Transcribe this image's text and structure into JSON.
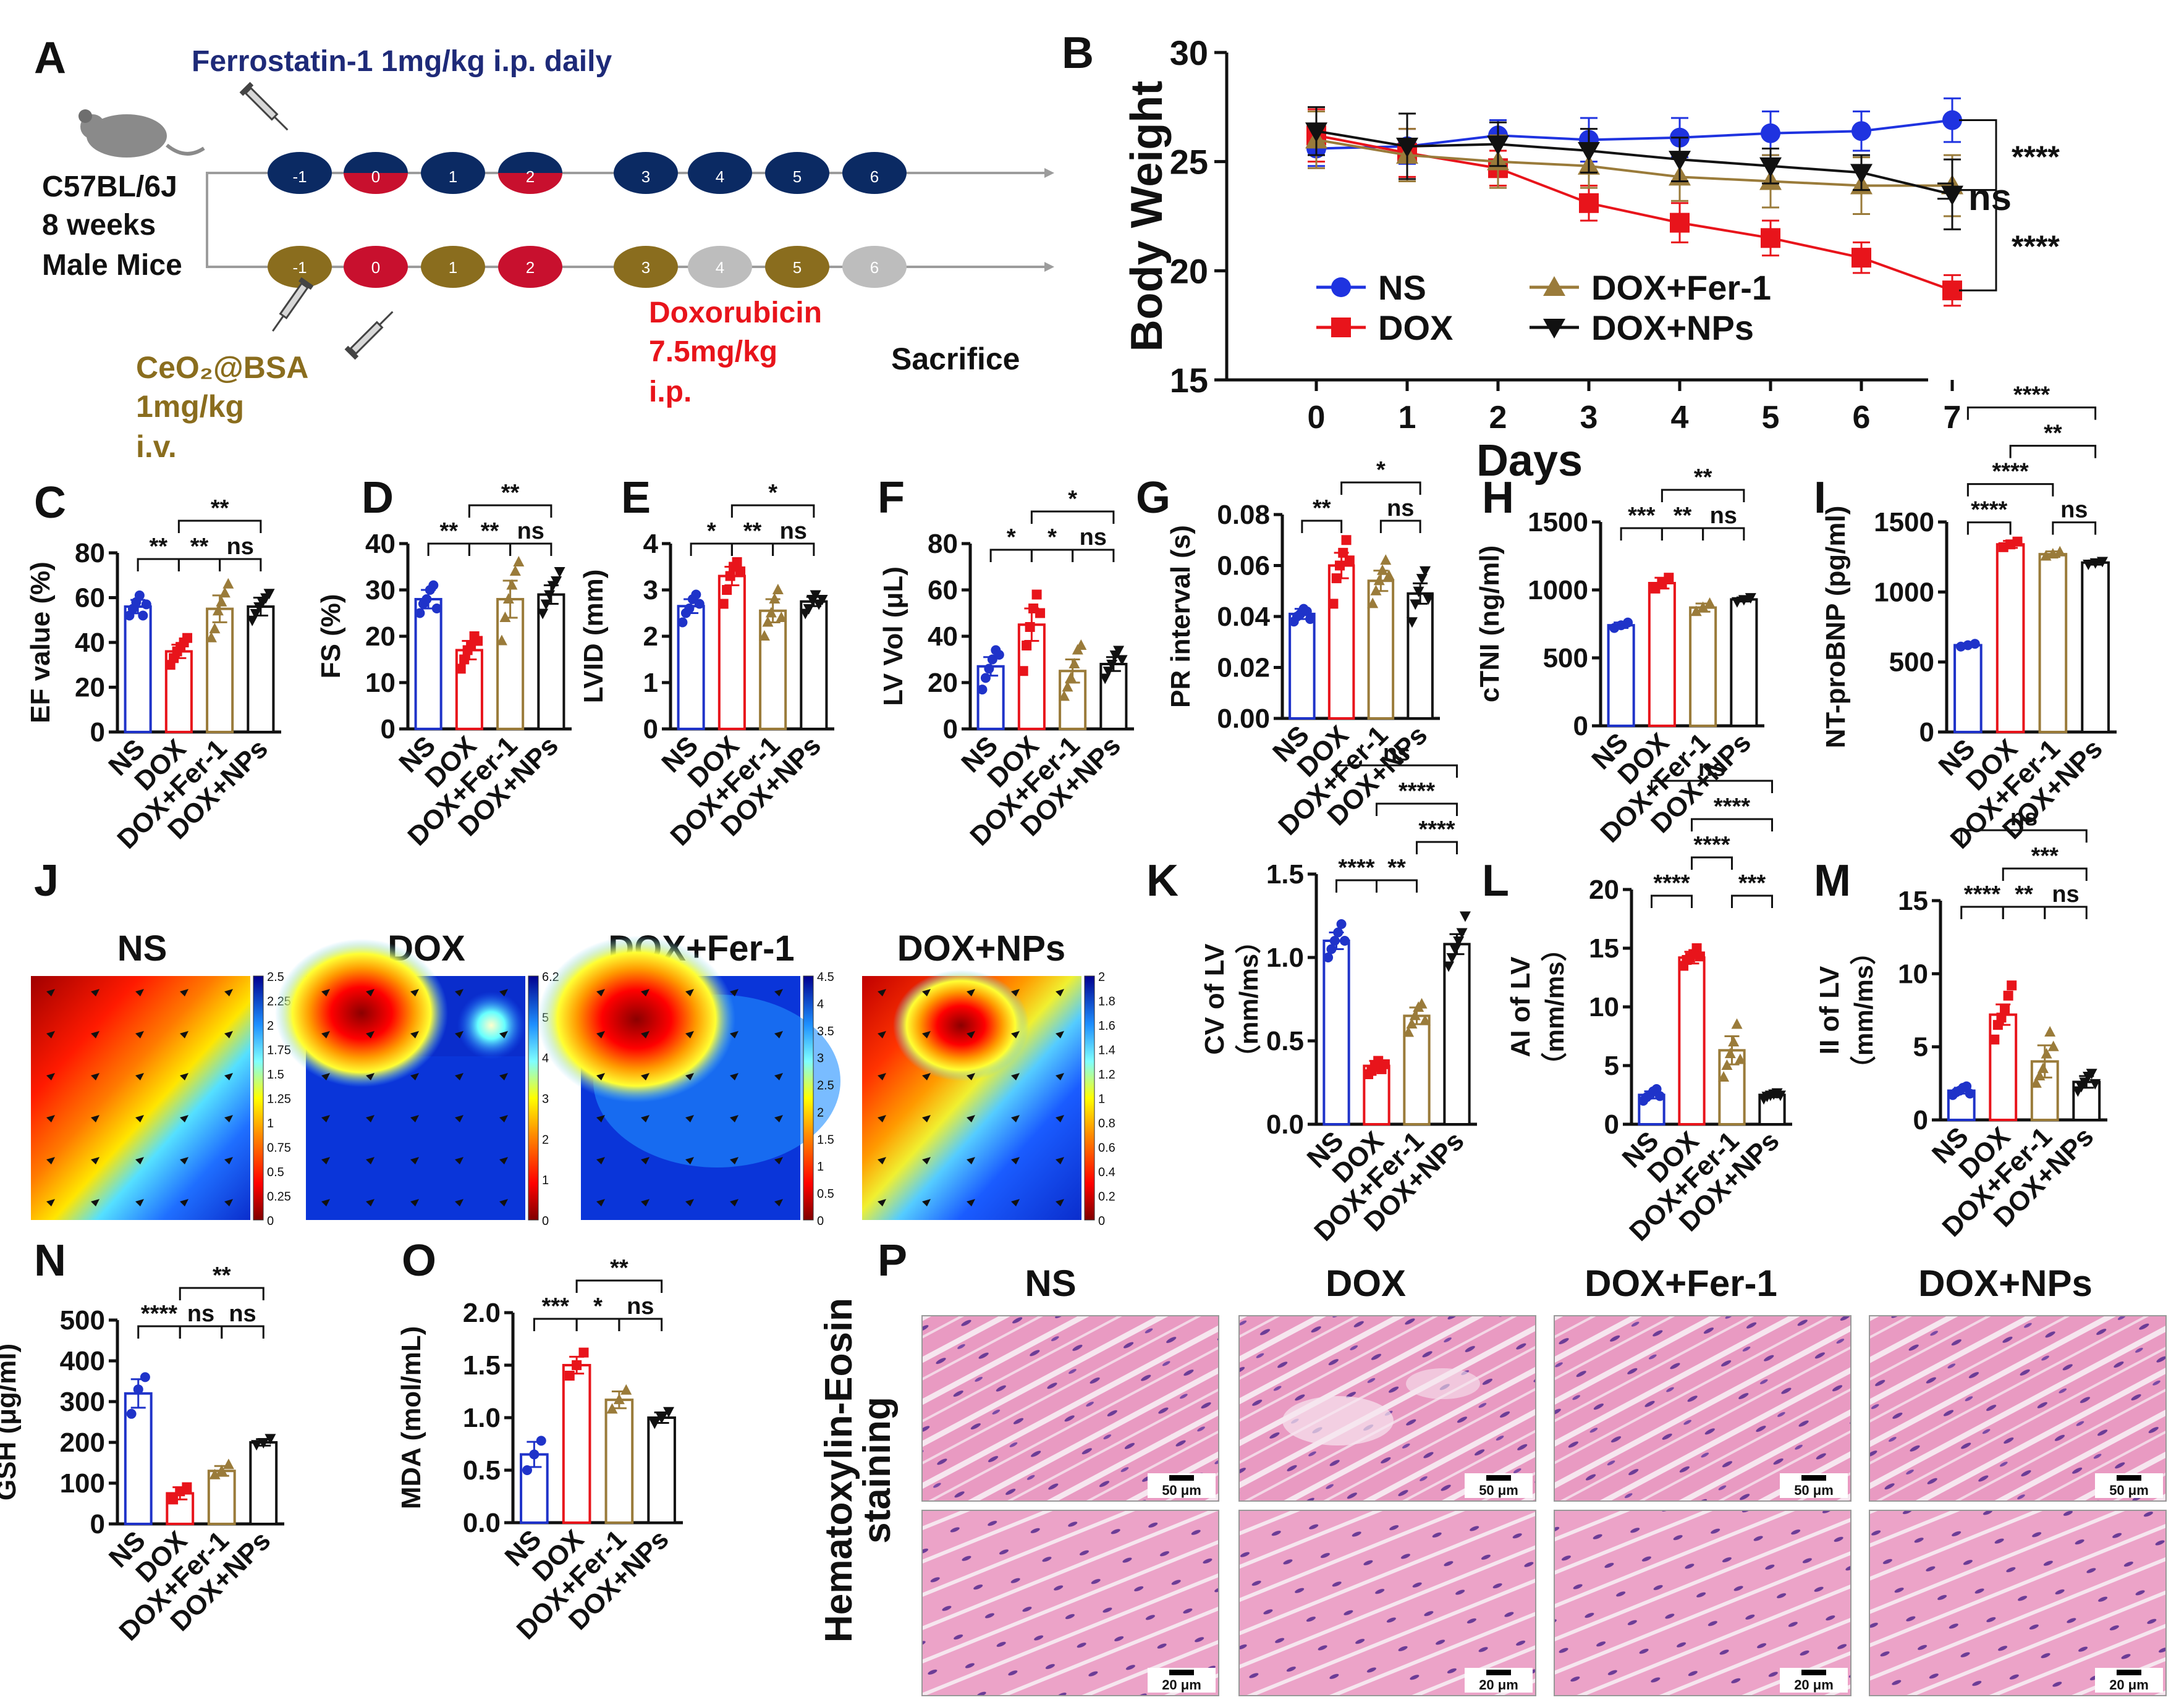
{
  "panel_letters": {
    "A": "A",
    "B": "B",
    "C": "C",
    "D": "D",
    "E": "E",
    "F": "F",
    "G": "G",
    "H": "H",
    "I": "I",
    "J": "J",
    "K": "K",
    "L": "L",
    "M": "M",
    "N": "N",
    "O": "O",
    "P": "P"
  },
  "schematic": {
    "fer_label": "Ferrostatin-1 1mg/kg i.p. daily",
    "mouse_lines": [
      "C57BL/6J",
      "8 weeks",
      "Male Mice"
    ],
    "days": [
      "-1",
      "0",
      "1",
      "2",
      "3",
      "4",
      "5",
      "6"
    ],
    "ceo2_lines": [
      "CeO₂@BSA",
      "1mg/kg",
      "i.v."
    ],
    "dox_lines": [
      "Doxorubicin",
      "7.5mg/kg",
      "i.p."
    ],
    "sacrifice": "Sacrifice",
    "colors": {
      "navy": "#0b2a63",
      "red": "#c8102e",
      "olive": "#8a6d1e",
      "gray": "#bdbdbd"
    }
  },
  "groups": [
    "NS",
    "DOX",
    "DOX+Fer-1",
    "DOX+NPs"
  ],
  "group_colors": [
    "#1f33c9",
    "#e8141b",
    "#9a7b3a",
    "#111111"
  ],
  "chart_data": [
    {
      "panel": "B",
      "type": "line",
      "ylabel": "Body Weight",
      "xlabel": "Days",
      "x": [
        0,
        1,
        2,
        3,
        4,
        5,
        6,
        7
      ],
      "ylim": [
        15,
        30
      ],
      "yticks": [
        15,
        20,
        25,
        30
      ],
      "series": [
        {
          "name": "NS",
          "values": [
            25.6,
            25.7,
            26.2,
            26.0,
            26.1,
            26.3,
            26.4,
            26.9
          ],
          "err": [
            0.8,
            0.8,
            0.7,
            1.0,
            0.9,
            1.0,
            0.9,
            1.0
          ]
        },
        {
          "name": "DOX",
          "values": [
            26.2,
            25.4,
            24.7,
            23.1,
            22.2,
            21.5,
            20.6,
            19.1
          ],
          "err": [
            1.2,
            1.1,
            0.8,
            0.8,
            0.9,
            0.8,
            0.7,
            0.7
          ]
        },
        {
          "name": "DOX+Fer-1",
          "values": [
            26.0,
            25.3,
            25.0,
            24.8,
            24.3,
            24.1,
            23.9,
            23.9
          ],
          "err": [
            1.3,
            1.2,
            1.2,
            1.0,
            1.1,
            1.2,
            1.3,
            1.4
          ]
        },
        {
          "name": "DOX+NPs",
          "values": [
            26.4,
            25.7,
            25.8,
            25.5,
            25.1,
            24.8,
            24.5,
            23.5
          ],
          "err": [
            1.1,
            1.5,
            1.0,
            1.0,
            1.0,
            0.8,
            0.8,
            1.6
          ]
        }
      ],
      "annotations": [
        "****",
        "ns",
        "****"
      ]
    },
    {
      "panel": "C",
      "type": "bar",
      "ylabel": "EF value (%)",
      "ylim": [
        0,
        80
      ],
      "yticks": [
        0,
        20,
        40,
        60,
        80
      ],
      "values": [
        56,
        36,
        55,
        56
      ],
      "err": [
        3,
        3,
        6,
        4
      ],
      "points": [
        [
          52,
          55,
          58,
          61,
          52,
          57
        ],
        [
          30,
          33,
          36,
          38,
          40,
          42
        ],
        [
          42,
          46,
          54,
          58,
          62,
          66
        ],
        [
          50,
          53,
          56,
          58,
          60,
          62
        ]
      ],
      "brackets": [
        {
          "a": 0,
          "b": 1,
          "t": "**",
          "lvl": 0
        },
        {
          "a": 1,
          "b": 2,
          "t": "**",
          "lvl": 0
        },
        {
          "a": 2,
          "b": 3,
          "t": "ns",
          "lvl": 0
        },
        {
          "a": 1,
          "b": 3,
          "t": "**",
          "lvl": 1
        }
      ]
    },
    {
      "panel": "D",
      "type": "bar",
      "ylabel": "FS (%)",
      "ylim": [
        0,
        40
      ],
      "yticks": [
        0,
        10,
        20,
        30,
        40
      ],
      "values": [
        28,
        17,
        28,
        29
      ],
      "err": [
        2,
        2,
        4,
        2
      ],
      "points": [
        [
          25,
          27,
          28,
          30,
          31,
          26
        ],
        [
          13,
          15,
          17,
          18,
          20,
          19
        ],
        [
          19,
          24,
          28,
          31,
          34,
          36
        ],
        [
          25,
          27,
          29,
          31,
          32,
          34
        ]
      ],
      "brackets": [
        {
          "a": 0,
          "b": 1,
          "t": "**",
          "lvl": 0
        },
        {
          "a": 1,
          "b": 2,
          "t": "**",
          "lvl": 0
        },
        {
          "a": 2,
          "b": 3,
          "t": "ns",
          "lvl": 0
        },
        {
          "a": 1,
          "b": 3,
          "t": "**",
          "lvl": 1
        }
      ]
    },
    {
      "panel": "E",
      "type": "bar",
      "ylabel": "LVID (mm)",
      "ylim": [
        0,
        4
      ],
      "yticks": [
        0,
        1,
        2,
        3,
        4
      ],
      "values": [
        2.65,
        3.3,
        2.55,
        2.75
      ],
      "err": [
        0.15,
        0.2,
        0.25,
        0.1
      ],
      "points": [
        [
          2.3,
          2.5,
          2.6,
          2.8,
          2.9,
          2.7
        ],
        [
          2.7,
          3.0,
          3.3,
          3.5,
          3.6,
          3.4
        ],
        [
          2.0,
          2.3,
          2.5,
          2.8,
          3.0,
          2.4
        ],
        [
          2.5,
          2.6,
          2.8,
          2.9,
          2.7,
          2.8
        ]
      ],
      "brackets": [
        {
          "a": 0,
          "b": 1,
          "t": "*",
          "lvl": 0
        },
        {
          "a": 1,
          "b": 2,
          "t": "**",
          "lvl": 0
        },
        {
          "a": 2,
          "b": 3,
          "t": "ns",
          "lvl": 0
        },
        {
          "a": 1,
          "b": 3,
          "t": "*",
          "lvl": 1
        }
      ]
    },
    {
      "panel": "F",
      "type": "bar",
      "ylabel": "LV Vol (μL)",
      "ylim": [
        0,
        80
      ],
      "yticks": [
        0,
        20,
        40,
        60,
        80
      ],
      "values": [
        27,
        45,
        25,
        28
      ],
      "err": [
        4,
        7,
        5,
        3
      ],
      "points": [
        [
          17,
          22,
          26,
          30,
          34,
          32
        ],
        [
          25,
          36,
          44,
          52,
          58,
          50
        ],
        [
          14,
          18,
          22,
          28,
          34,
          36
        ],
        [
          22,
          25,
          28,
          32,
          34,
          30
        ]
      ],
      "brackets": [
        {
          "a": 0,
          "b": 1,
          "t": "*",
          "lvl": 0
        },
        {
          "a": 1,
          "b": 2,
          "t": "*",
          "lvl": 0
        },
        {
          "a": 2,
          "b": 3,
          "t": "ns",
          "lvl": 0
        },
        {
          "a": 1,
          "b": 3,
          "t": "*",
          "lvl": 1
        }
      ]
    },
    {
      "panel": "G",
      "type": "bar",
      "ylabel": "PR interval (s)",
      "ylim": [
        0,
        0.08
      ],
      "yticks": [
        0.0,
        0.02,
        0.04,
        0.06,
        0.08
      ],
      "tickfmt": 2,
      "values": [
        0.041,
        0.06,
        0.054,
        0.049
      ],
      "err": [
        0.002,
        0.005,
        0.004,
        0.004
      ],
      "points": [
        [
          0.038,
          0.04,
          0.041,
          0.043,
          0.042,
          0.039
        ],
        [
          0.045,
          0.055,
          0.06,
          0.065,
          0.07,
          0.062
        ],
        [
          0.045,
          0.05,
          0.054,
          0.058,
          0.062,
          0.056
        ],
        [
          0.038,
          0.045,
          0.05,
          0.055,
          0.058,
          0.047
        ]
      ],
      "brackets": [
        {
          "a": 0,
          "b": 1,
          "t": "**",
          "lvl": 0
        },
        {
          "a": 2,
          "b": 3,
          "t": "ns",
          "lvl": 0
        },
        {
          "a": 1,
          "b": 3,
          "t": "*",
          "lvl": 1
        }
      ]
    },
    {
      "panel": "H",
      "type": "bar",
      "ylabel": "cTNI (ng/ml)",
      "ylim": [
        0,
        1500
      ],
      "yticks": [
        0,
        500,
        1000,
        1500
      ],
      "values": [
        740,
        1050,
        870,
        930
      ],
      "err": [
        20,
        40,
        30,
        15
      ],
      "points": [
        [
          720,
          740,
          760
        ],
        [
          1010,
          1050,
          1090
        ],
        [
          840,
          870,
          900
        ],
        [
          915,
          930,
          945
        ]
      ],
      "brackets": [
        {
          "a": 0,
          "b": 1,
          "t": "***",
          "lvl": 0
        },
        {
          "a": 1,
          "b": 2,
          "t": "**",
          "lvl": 0
        },
        {
          "a": 2,
          "b": 3,
          "t": "ns",
          "lvl": 0
        },
        {
          "a": 1,
          "b": 3,
          "t": "**",
          "lvl": 1
        }
      ]
    },
    {
      "panel": "I",
      "type": "bar",
      "ylabel": "NT-proBNP (pg/ml)",
      "ylim": [
        0,
        1500
      ],
      "yticks": [
        0,
        500,
        1000,
        1500
      ],
      "values": [
        620,
        1340,
        1270,
        1210
      ],
      "err": [
        10,
        25,
        20,
        15
      ],
      "points": [
        [
          610,
          620,
          630
        ],
        [
          1320,
          1340,
          1360
        ],
        [
          1255,
          1270,
          1285
        ],
        [
          1200,
          1210,
          1220
        ]
      ],
      "brackets": [
        {
          "a": 0,
          "b": 1,
          "t": "****",
          "lvl": 0
        },
        {
          "a": 2,
          "b": 3,
          "t": "ns",
          "lvl": 0
        },
        {
          "a": 0,
          "b": 2,
          "t": "****",
          "lvl": 1
        },
        {
          "a": 1,
          "b": 3,
          "t": "**",
          "lvl": 2
        },
        {
          "a": 0,
          "b": 3,
          "t": "****",
          "lvl": 3
        }
      ]
    },
    {
      "panel": "K",
      "type": "bar",
      "ylabel": "CV of LV",
      "ylabel2": "（mm/ms）",
      "ylim": [
        0,
        1.5
      ],
      "yticks": [
        0.0,
        0.5,
        1.0,
        1.5
      ],
      "tickfmt": 1,
      "values": [
        1.1,
        0.35,
        0.65,
        1.08
      ],
      "err": [
        0.05,
        0.03,
        0.05,
        0.06
      ],
      "points": [
        [
          1.0,
          1.05,
          1.1,
          1.15,
          1.2,
          1.1
        ],
        [
          0.3,
          0.32,
          0.35,
          0.38,
          0.33,
          0.36
        ],
        [
          0.55,
          0.6,
          0.65,
          0.7,
          0.72,
          0.62
        ],
        [
          0.95,
          1.0,
          1.05,
          1.1,
          1.15,
          1.25
        ]
      ],
      "brackets": [
        {
          "a": 0,
          "b": 1,
          "t": "****",
          "lvl": 0
        },
        {
          "a": 1,
          "b": 2,
          "t": "**",
          "lvl": 0
        },
        {
          "a": 2,
          "b": 3,
          "t": "****",
          "lvl": 1
        },
        {
          "a": 1,
          "b": 3,
          "t": "****",
          "lvl": 2
        },
        {
          "a": 0,
          "b": 3,
          "t": "ns",
          "lvl": 3
        }
      ]
    },
    {
      "panel": "L",
      "type": "bar",
      "ylabel": "AI of LV",
      "ylabel2": "（mm/ms）",
      "ylim": [
        0,
        20
      ],
      "yticks": [
        0,
        5,
        10,
        15,
        20
      ],
      "values": [
        2.5,
        14.2,
        6.3,
        2.5
      ],
      "err": [
        0.3,
        0.5,
        1.2,
        0.2
      ],
      "points": [
        [
          2,
          2.3,
          2.5,
          2.8,
          3,
          2.4
        ],
        [
          13.5,
          14,
          14.2,
          14.5,
          15,
          14.3
        ],
        [
          4,
          5,
          6,
          7,
          8.5,
          5.5
        ],
        [
          2.2,
          2.4,
          2.5,
          2.6,
          2.7,
          2.5
        ]
      ],
      "brackets": [
        {
          "a": 0,
          "b": 1,
          "t": "****",
          "lvl": 0
        },
        {
          "a": 2,
          "b": 3,
          "t": "***",
          "lvl": 0
        },
        {
          "a": 1,
          "b": 2,
          "t": "****",
          "lvl": 1
        },
        {
          "a": 1,
          "b": 3,
          "t": "****",
          "lvl": 2
        },
        {
          "a": 0,
          "b": 3,
          "t": "ns",
          "lvl": 3
        }
      ]
    },
    {
      "panel": "M",
      "type": "bar",
      "ylabel": "II of LV",
      "ylabel2": "（mm/ms）",
      "ylim": [
        0,
        15
      ],
      "yticks": [
        0,
        5,
        10,
        15
      ],
      "values": [
        2.0,
        7.2,
        4.0,
        2.6
      ],
      "err": [
        0.2,
        0.7,
        1.1,
        0.4
      ],
      "points": [
        [
          1.7,
          1.9,
          2,
          2.2,
          2.3,
          1.8
        ],
        [
          5.5,
          6.5,
          7,
          7.5,
          8.5,
          9.2
        ],
        [
          2.5,
          3,
          3.5,
          4.5,
          6,
          5
        ],
        [
          2,
          2.3,
          2.6,
          3,
          3.2,
          2.5
        ]
      ],
      "brackets": [
        {
          "a": 0,
          "b": 1,
          "t": "****",
          "lvl": 0
        },
        {
          "a": 1,
          "b": 2,
          "t": "**",
          "lvl": 0
        },
        {
          "a": 2,
          "b": 3,
          "t": "ns",
          "lvl": 0
        },
        {
          "a": 1,
          "b": 3,
          "t": "***",
          "lvl": 1
        },
        {
          "a": 0,
          "b": 3,
          "t": "ns",
          "lvl": 2
        }
      ]
    },
    {
      "panel": "N",
      "type": "bar",
      "ylabel": "GSH (μg/ml)",
      "ylim": [
        0,
        500
      ],
      "yticks": [
        0,
        100,
        200,
        300,
        400,
        500
      ],
      "values": [
        320,
        75,
        130,
        200
      ],
      "err": [
        35,
        15,
        12,
        8
      ],
      "points": [
        [
          270,
          330,
          360
        ],
        [
          60,
          80,
          90
        ],
        [
          120,
          130,
          145
        ],
        [
          195,
          200,
          210
        ]
      ],
      "brackets": [
        {
          "a": 0,
          "b": 1,
          "t": "****",
          "lvl": 0
        },
        {
          "a": 1,
          "b": 2,
          "t": "ns",
          "lvl": 0
        },
        {
          "a": 2,
          "b": 3,
          "t": "ns",
          "lvl": 0
        },
        {
          "a": 1,
          "b": 3,
          "t": "**",
          "lvl": 1
        }
      ]
    },
    {
      "panel": "O",
      "type": "bar",
      "ylabel": "MDA (mol/mL)",
      "ylim": [
        0,
        2.0
      ],
      "yticks": [
        0.0,
        0.5,
        1.0,
        1.5,
        2.0
      ],
      "tickfmt": 1,
      "values": [
        0.65,
        1.5,
        1.17,
        1.0
      ],
      "err": [
        0.12,
        0.08,
        0.08,
        0.05
      ],
      "points": [
        [
          0.5,
          0.65,
          0.78
        ],
        [
          1.4,
          1.5,
          1.62
        ],
        [
          1.08,
          1.17,
          1.26
        ],
        [
          0.95,
          1.0,
          1.06
        ]
      ],
      "brackets": [
        {
          "a": 0,
          "b": 1,
          "t": "***",
          "lvl": 0
        },
        {
          "a": 1,
          "b": 2,
          "t": "*",
          "lvl": 0
        },
        {
          "a": 2,
          "b": 3,
          "t": "ns",
          "lvl": 0
        },
        {
          "a": 1,
          "b": 3,
          "t": "**",
          "lvl": 1
        }
      ]
    }
  ],
  "heatmaps": [
    {
      "title": "NS",
      "ticks": [
        "2.5",
        "2.25",
        "2",
        "1.75",
        "1.5",
        "1.25",
        "1",
        "0.75",
        "0.5",
        "0.25",
        "0"
      ]
    },
    {
      "title": "DOX",
      "ticks": [
        "6.2",
        "5",
        "4",
        "3",
        "2",
        "1",
        "0"
      ]
    },
    {
      "title": "DOX+Fer-1",
      "ticks": [
        "4.5",
        "4",
        "3.5",
        "3",
        "2.5",
        "2",
        "1.5",
        "1",
        "0.5",
        "0"
      ]
    },
    {
      "title": "DOX+NPs",
      "ticks": [
        "2",
        "1.8",
        "1.6",
        "1.4",
        "1.2",
        "1",
        "0.8",
        "0.6",
        "0.4",
        "0.2",
        "0"
      ]
    }
  ],
  "histology": {
    "row_label_1": "Hematoxylin-Eosin",
    "row_label_2": "staining",
    "titles": [
      "NS",
      "DOX",
      "DOX+Fer-1",
      "DOX+NPs"
    ],
    "scale_top": "50 μm",
    "scale_bottom": "20 μm"
  }
}
